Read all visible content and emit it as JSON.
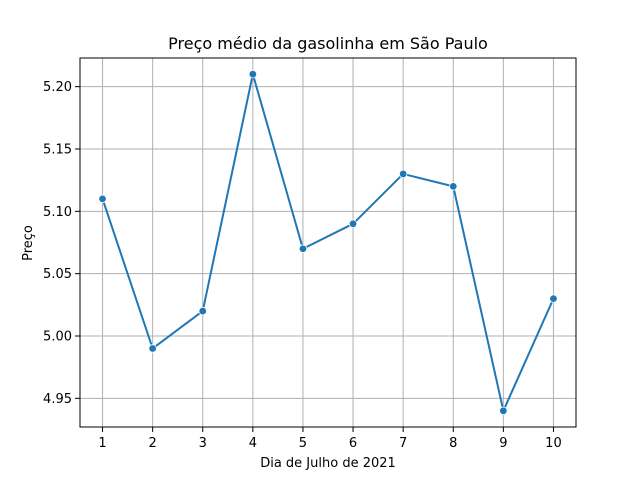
{
  "chart_data": {
    "type": "line",
    "title": "Preço médio da gasolinha em São Paulo",
    "xlabel": "Dia de Julho de 2021",
    "ylabel": "Preço",
    "x": [
      1,
      2,
      3,
      4,
      5,
      6,
      7,
      8,
      9,
      10
    ],
    "xticks": [
      "1",
      "2",
      "3",
      "4",
      "5",
      "6",
      "7",
      "8",
      "9",
      "10"
    ],
    "yticks": [
      "4.95",
      "5.00",
      "5.05",
      "5.10",
      "5.15",
      "5.20"
    ],
    "ytick_values": [
      4.95,
      5.0,
      5.05,
      5.1,
      5.15,
      5.2
    ],
    "series": [
      {
        "values": [
          5.11,
          4.99,
          5.02,
          5.21,
          5.07,
          5.09,
          5.13,
          5.12,
          4.94,
          5.03
        ]
      }
    ],
    "xlim": [
      0.55,
      10.45
    ],
    "ylim": [
      4.927,
      5.223
    ],
    "grid": true,
    "marker": "circle",
    "line_color": "#1f77b4",
    "grid_color": "#b0b0b0"
  }
}
